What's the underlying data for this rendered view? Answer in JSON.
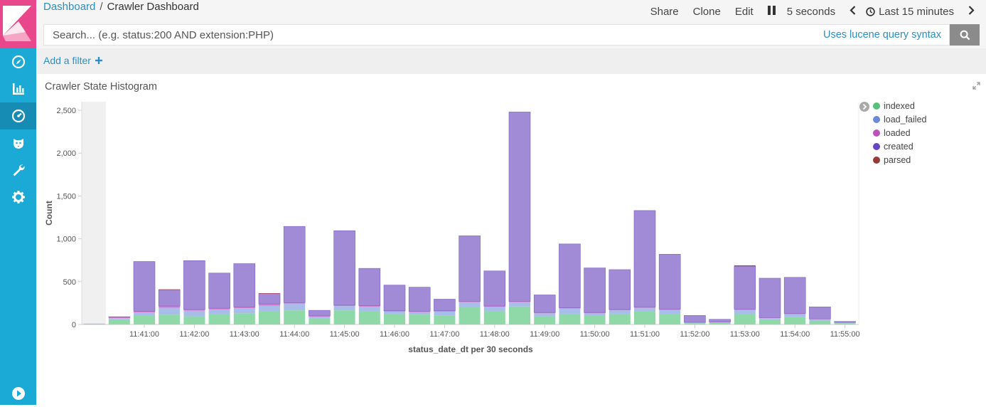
{
  "breadcrumb": {
    "parent": "Dashboard",
    "separator": "/",
    "current": "Crawler Dashboard"
  },
  "top_actions": {
    "share": "Share",
    "clone": "Clone",
    "edit": "Edit",
    "refresh_interval": "5 seconds",
    "time_range": "Last 15 minutes"
  },
  "search": {
    "placeholder": "Search... (e.g. status:200 AND extension:PHP)",
    "value": "",
    "syntax_link": "Uses lucene query syntax"
  },
  "filters": {
    "add_label": "Add a filter"
  },
  "nav": {
    "items": [
      "discover-icon",
      "visualize-icon",
      "dashboard-icon",
      "timelion-icon",
      "dev-tools-icon",
      "management-icon",
      "collapse-icon"
    ]
  },
  "panel": {
    "title": "Crawler State Histogram"
  },
  "colors": {
    "indexed": "#8fd8a8",
    "load_failed": "#a8bdea",
    "loaded": "#d77fcf",
    "created": "#a18ad6",
    "parsed": "#b43e3e"
  },
  "legend": [
    {
      "name": "indexed",
      "color": "#57c17b"
    },
    {
      "name": "load_failed",
      "color": "#6f87d8"
    },
    {
      "name": "loaded",
      "color": "#bc52bc"
    },
    {
      "name": "created",
      "color": "#6846c2"
    },
    {
      "name": "parsed",
      "color": "#963b3b"
    }
  ],
  "chart_data": {
    "type": "bar",
    "stacked": true,
    "title": "",
    "xlabel": "status_date_dt per 30 seconds",
    "ylabel": "Count",
    "ylim": [
      0,
      2600
    ],
    "y_ticks": [
      "0",
      "500",
      "1,000",
      "1,500",
      "2,000",
      "2,500"
    ],
    "y_tick_values": [
      0,
      500,
      1000,
      1500,
      2000,
      2500
    ],
    "x_tick_labels": [
      "11:41:00",
      "11:42:00",
      "11:43:00",
      "11:44:00",
      "11:45:00",
      "11:46:00",
      "11:47:00",
      "11:48:00",
      "11:49:00",
      "11:50:00",
      "11:51:00",
      "11:52:00",
      "11:53:00",
      "11:54:00",
      "11:55:00"
    ],
    "categories": [
      "11:40:00",
      "11:40:30",
      "11:41:00",
      "11:41:30",
      "11:42:00",
      "11:42:30",
      "11:43:00",
      "11:43:30",
      "11:44:00",
      "11:44:30",
      "11:45:00",
      "11:45:30",
      "11:46:00",
      "11:46:30",
      "11:47:00",
      "11:47:30",
      "11:48:00",
      "11:48:30",
      "11:49:00",
      "11:49:30",
      "11:50:00",
      "11:50:30",
      "11:51:00",
      "11:51:30",
      "11:52:00",
      "11:52:30",
      "11:53:00",
      "11:53:30",
      "11:54:00",
      "11:54:30",
      "11:55:00",
      "11:55:30"
    ],
    "series": [
      {
        "name": "indexed",
        "values": [
          0,
          60,
          100,
          115,
          95,
          120,
          130,
          150,
          165,
          70,
          165,
          150,
          125,
          115,
          105,
          200,
          150,
          210,
          95,
          125,
          100,
          125,
          150,
          120,
          15,
          20,
          120,
          60,
          85,
          45,
          15,
          0
        ]
      },
      {
        "name": "load_failed",
        "values": [
          10,
          15,
          40,
          80,
          65,
          55,
          60,
          70,
          80,
          20,
          50,
          55,
          25,
          30,
          45,
          60,
          55,
          50,
          35,
          60,
          30,
          40,
          45,
          50,
          5,
          5,
          50,
          15,
          35,
          15,
          5,
          0
        ]
      },
      {
        "name": "loaded",
        "values": [
          0,
          10,
          15,
          20,
          15,
          15,
          15,
          20,
          10,
          10,
          10,
          15,
          10,
          10,
          10,
          10,
          10,
          10,
          10,
          10,
          10,
          10,
          10,
          10,
          5,
          5,
          10,
          5,
          10,
          5,
          5,
          0
        ]
      },
      {
        "name": "created",
        "values": [
          0,
          5,
          580,
          190,
          570,
          410,
          505,
          120,
          890,
          65,
          870,
          435,
          300,
          280,
          135,
          765,
          410,
          2210,
          205,
          745,
          520,
          465,
          1125,
          640,
          80,
          30,
          500,
          460,
          420,
          140,
          10,
          0
        ]
      },
      {
        "name": "parsed",
        "values": [
          0,
          0,
          0,
          5,
          0,
          0,
          0,
          5,
          0,
          0,
          0,
          0,
          0,
          0,
          0,
          0,
          0,
          0,
          0,
          0,
          0,
          0,
          0,
          0,
          0,
          0,
          10,
          0,
          0,
          0,
          0,
          0
        ]
      }
    ],
    "grid": false,
    "legend_position": "right"
  }
}
